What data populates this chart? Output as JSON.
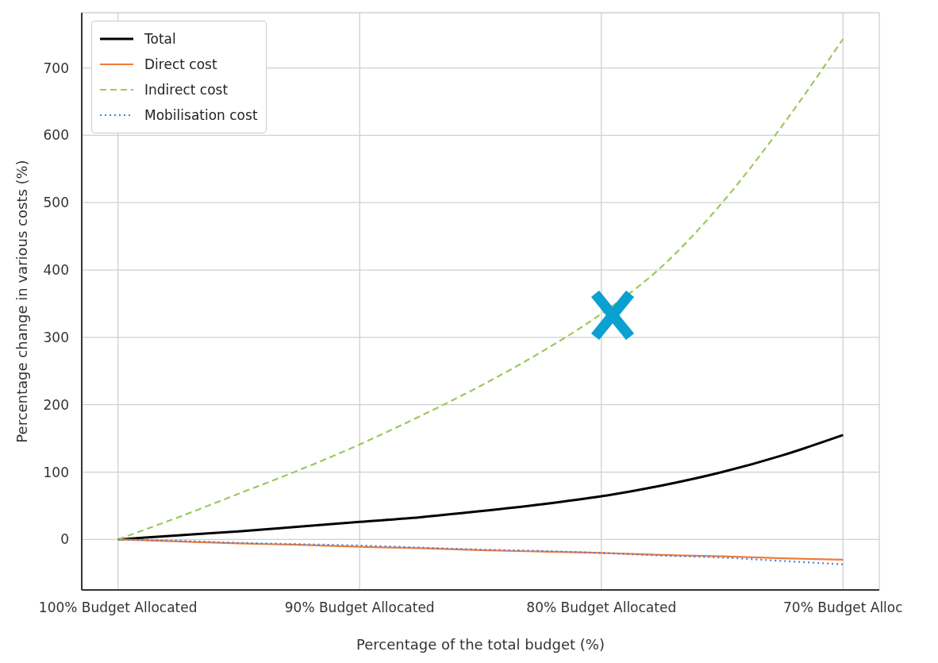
{
  "chart_data": {
    "type": "line",
    "xlabel": "Percentage of the total budget (%)",
    "ylabel": "Percentage change in various costs (%)",
    "x": [
      100,
      97.5,
      95,
      92.5,
      90,
      87.5,
      85,
      82.5,
      80,
      77.5,
      75,
      72.5,
      70
    ],
    "xlim": [
      101.5,
      68.5
    ],
    "xticks": [
      {
        "value": 100,
        "label": "100% Budget Allocated"
      },
      {
        "value": 90,
        "label": "90% Budget Allocated"
      },
      {
        "value": 80,
        "label": "80% Budget Allocated"
      },
      {
        "value": 70,
        "label": "70% Budget Alloc"
      }
    ],
    "ylim": [
      -75,
      782
    ],
    "yticks": [
      0,
      100,
      200,
      300,
      400,
      500,
      600,
      700
    ],
    "series": [
      {
        "name": "Total",
        "color": "#000000",
        "line_style": "solid",
        "values": [
          0,
          6,
          12,
          19,
          26,
          33,
          42,
          52,
          64,
          80,
          100,
          125,
          155
        ]
      },
      {
        "name": "Direct cost",
        "color": "#f07c3a",
        "line_style": "solid",
        "values": [
          0,
          -3,
          -6,
          -8,
          -11,
          -13,
          -16,
          -18,
          -20,
          -23,
          -25,
          -28,
          -30
        ]
      },
      {
        "name": "Indirect cost",
        "color": "#9bc95a",
        "line_style": "dashed",
        "values": [
          0,
          33,
          68,
          103,
          141,
          183,
          228,
          278,
          335,
          405,
          500,
          615,
          743
        ]
      },
      {
        "name": "Mobilisation cost",
        "color": "#4a7fe0",
        "line_style": "dotted",
        "values": [
          0,
          -2,
          -5,
          -7,
          -9,
          -12,
          -15,
          -17,
          -20,
          -24,
          -27,
          -32,
          -37
        ]
      }
    ],
    "grid": true,
    "legend": "top left",
    "marker": "none"
  }
}
